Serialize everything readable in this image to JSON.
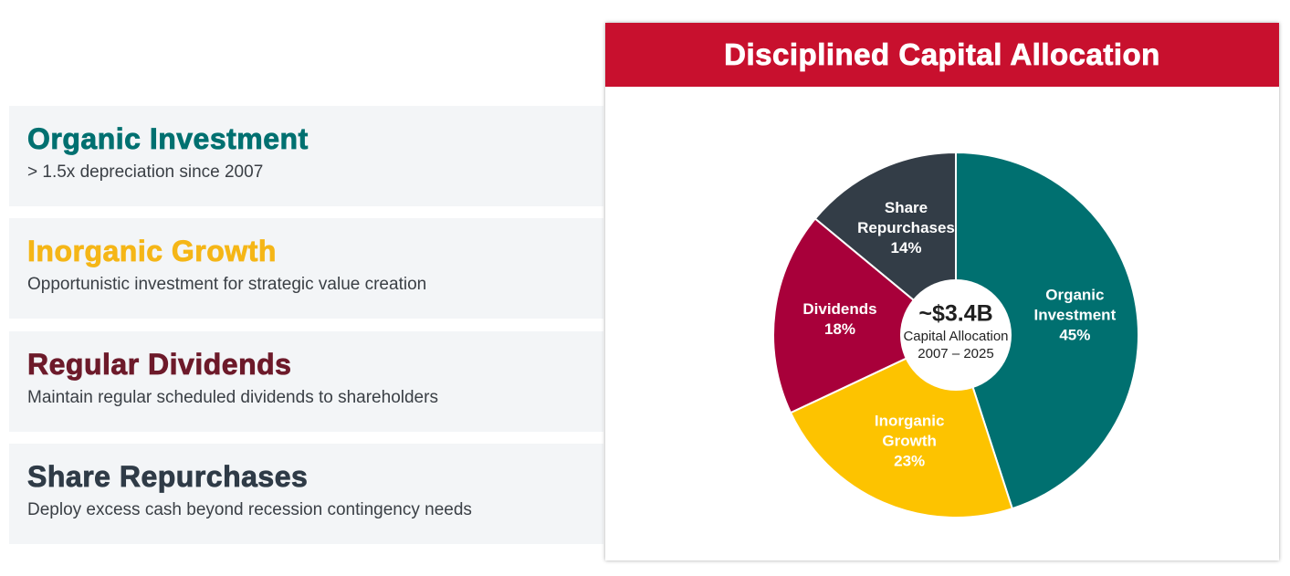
{
  "cards": [
    {
      "title": "Organic Investment",
      "description": "> 1.5x depreciation since 2007",
      "color": "#007070"
    },
    {
      "title": "Inorganic Growth",
      "description": "Opportunistic investment for strategic value creation",
      "color": "#f5b617"
    },
    {
      "title": "Regular Dividends",
      "description": "Maintain regular scheduled dividends to shareholders",
      "color": "#6d1a2a"
    },
    {
      "title": "Share Repurchases",
      "description": "Deploy excess cash beyond recession contingency needs",
      "color": "#2f3b47"
    }
  ],
  "panel": {
    "title": "Disciplined Capital Allocation",
    "header_color": "#c8102e"
  },
  "chart_data": {
    "type": "pie",
    "title": "Disciplined Capital Allocation",
    "center": {
      "value": "~$3.4B",
      "label": "Capital Allocation",
      "period": "2007 – 2025"
    },
    "slices": [
      {
        "label_lines": [
          "Organic",
          "Investment"
        ],
        "value": 45,
        "value_label": "45%",
        "color": "#007070"
      },
      {
        "label_lines": [
          "Inorganic",
          "Growth"
        ],
        "value": 23,
        "value_label": "23%",
        "color": "#fdc300"
      },
      {
        "label_lines": [
          "Dividends"
        ],
        "value": 18,
        "value_label": "18%",
        "color": "#a8003a"
      },
      {
        "label_lines": [
          "Share",
          "Repurchases"
        ],
        "value": 14,
        "value_label": "14%",
        "color": "#333d47"
      }
    ]
  }
}
